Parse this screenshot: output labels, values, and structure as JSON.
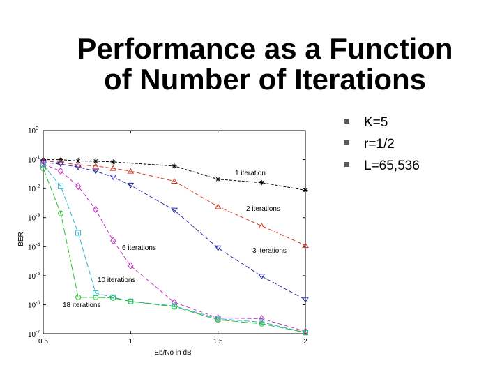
{
  "slide": {
    "title_line1": "Performance as a Function",
    "title_line2": "of Number of Iterations",
    "bullets": [
      "K=5",
      "r=1/2",
      "L=65,536"
    ]
  },
  "chart_data": {
    "type": "line",
    "xlabel": "Eb/No in dB",
    "ylabel": "BER",
    "xlim": [
      0.5,
      2
    ],
    "ylim": [
      1e-07,
      1
    ],
    "yscale": "log",
    "xticks": [
      "0.5",
      "1",
      "1.5",
      "2"
    ],
    "yticks": [
      "10^0",
      "10^-1",
      "10^-2",
      "10^-3",
      "10^-4",
      "10^-5",
      "10^-6",
      "10^-7"
    ],
    "grid": false,
    "series": [
      {
        "name": "1 iteration",
        "color": "#000000",
        "marker": "star",
        "x": [
          0.5,
          0.6,
          0.7,
          0.8,
          0.9,
          1.25,
          1.5,
          1.75,
          2.0
        ],
        "y": [
          0.1,
          0.1,
          0.09,
          0.088,
          0.083,
          0.06,
          0.021,
          0.016,
          0.0088
        ]
      },
      {
        "name": "2 iterations",
        "color": "#d33a2c",
        "marker": "triangle-up",
        "x": [
          0.5,
          0.6,
          0.7,
          0.8,
          0.9,
          1.0,
          1.25,
          1.5,
          1.75,
          2.0
        ],
        "y": [
          0.09,
          0.08,
          0.066,
          0.06,
          0.05,
          0.04,
          0.018,
          0.0024,
          0.00052,
          0.00011
        ]
      },
      {
        "name": "3 iterations",
        "color": "#2a2aa6",
        "marker": "triangle-down",
        "x": [
          0.5,
          0.6,
          0.7,
          0.8,
          0.9,
          1.0,
          1.25,
          1.5,
          1.75,
          2.0
        ],
        "y": [
          0.08,
          0.07,
          0.055,
          0.04,
          0.025,
          0.013,
          0.0018,
          9e-05,
          9.5e-06,
          1.5e-06
        ]
      },
      {
        "name": "6 iterations",
        "color": "#c030c0",
        "marker": "diamond",
        "x": [
          0.5,
          0.6,
          0.7,
          0.8,
          0.9,
          1.0,
          1.25,
          1.5,
          1.75,
          2.0
        ],
        "y": [
          0.07,
          0.04,
          0.012,
          0.0019,
          0.00016,
          2.2e-05,
          1.2e-06,
          3.5e-07,
          3.3e-07,
          1.2e-07
        ]
      },
      {
        "name": "10 iterations",
        "color": "#2fb0d0",
        "marker": "square",
        "x": [
          0.5,
          0.6,
          0.7,
          0.8,
          0.9,
          1.0,
          1.25,
          1.5,
          1.75,
          2.0
        ],
        "y": [
          0.065,
          0.012,
          0.0003,
          2.5e-06,
          1.8e-06,
          1.3e-06,
          9e-07,
          3.3e-07,
          2.5e-07,
          1.1e-07
        ]
      },
      {
        "name": "18 iterations",
        "color": "#2fbf2f",
        "marker": "circle",
        "x": [
          0.5,
          0.6,
          0.7,
          0.8,
          0.9,
          1.0,
          1.25,
          1.5,
          1.75,
          2.0
        ],
        "y": [
          0.05,
          0.0014,
          1.8e-06,
          1.8e-06,
          1.7e-06,
          1.3e-06,
          8.5e-07,
          3e-07,
          2.2e-07,
          1.1e-07
        ]
      }
    ],
    "annotations": [
      "1 iteration",
      "2 iterations",
      "3 iterations",
      "6 iterations",
      "10 iterations",
      "18 iterations"
    ]
  }
}
